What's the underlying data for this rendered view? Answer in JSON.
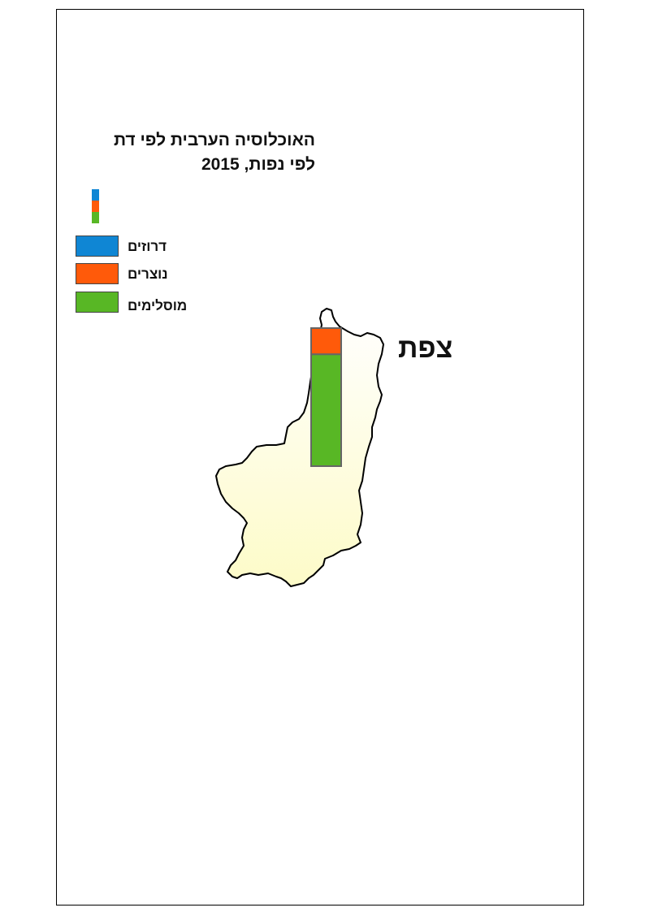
{
  "title": {
    "line1": "האוכלוסיה הערבית לפי דת",
    "line2": "לפי נפות, 2015"
  },
  "legend": {
    "items": [
      {
        "label": "דרוזים",
        "color": "#0f86d4"
      },
      {
        "label": "נוצרים",
        "color": "#ff5a0a"
      },
      {
        "label": "מוסלימים",
        "color": "#58b725"
      }
    ]
  },
  "map": {
    "region_label": "צפת",
    "region_fill": "#fefcd2",
    "bar_segments": [
      {
        "label": "דרוזים",
        "color": "#0f86d4",
        "share": 0.0
      },
      {
        "label": "נוצרים",
        "color": "#ff5a0a",
        "share": 0.19
      },
      {
        "label": "מוסלימים",
        "color": "#58b725",
        "share": 0.81
      }
    ]
  }
}
